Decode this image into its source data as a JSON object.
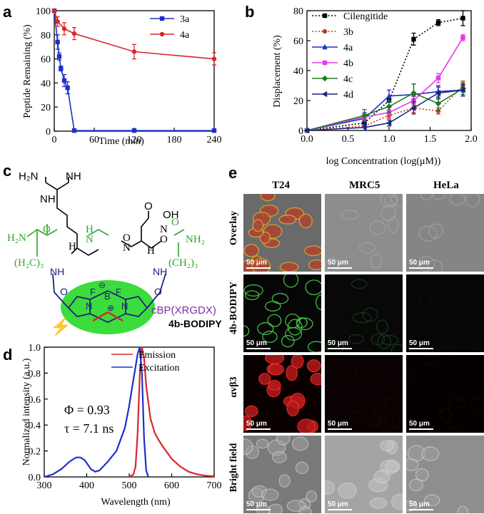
{
  "panels": {
    "a": "a",
    "b": "b",
    "c": "c",
    "d": "d",
    "e": "e"
  },
  "colors": {
    "blue": "#1f2fc8",
    "red": "#d8262a",
    "black": "#000000",
    "magenta": "#e838e8",
    "green": "#1e7d1e",
    "navy": "#1a237e",
    "darkred": "#c0392b",
    "chem_green": "#2ea52e",
    "purple": "#7b2fa8",
    "bodipy_fill": "#3cdc3c"
  },
  "chart_data": [
    {
      "id": "a",
      "type": "line",
      "xlabel": "Time (min)",
      "ylabel": "Peptide Remaining (%)",
      "xlim": [
        0,
        240
      ],
      "ylim": [
        0,
        100
      ],
      "xticks": [
        0,
        60,
        120,
        180,
        240
      ],
      "yticks": [
        0,
        20,
        40,
        60,
        80,
        100
      ],
      "legend_position": "top-right",
      "series": [
        {
          "name": "3a",
          "color": "#1f2fc8",
          "marker": "square",
          "x": [
            0,
            5,
            7.5,
            10,
            15,
            20,
            30,
            120,
            240
          ],
          "y": [
            100,
            74,
            62,
            52,
            42,
            36,
            0.5,
            0.5,
            0.5
          ],
          "err": [
            0,
            6,
            3,
            2,
            5,
            5,
            0,
            0,
            0
          ]
        },
        {
          "name": "4a",
          "color": "#d8262a",
          "marker": "circle",
          "x": [
            0,
            5,
            15,
            30,
            120,
            240
          ],
          "y": [
            100,
            91,
            85,
            81,
            66,
            60
          ],
          "err": [
            0,
            4,
            5,
            5,
            6,
            5
          ]
        }
      ]
    },
    {
      "id": "b",
      "type": "line",
      "xlabel": "log Concentration (log(μM))",
      "ylabel": "Displacement (%)",
      "xlim": [
        0,
        2
      ],
      "ylim": [
        0,
        80
      ],
      "xticks": [
        "0.0",
        "0.5",
        "1.0",
        "1.5",
        "2.0"
      ],
      "yticks": [
        0,
        20,
        40,
        60,
        80
      ],
      "legend_position": "top-left",
      "series": [
        {
          "name": "Cilengitide",
          "color": "#000000",
          "dash": "dot",
          "marker": "square",
          "x": [
            0,
            0.7,
            1.0,
            1.3,
            1.6,
            1.9
          ],
          "y": [
            0,
            5,
            20,
            61,
            72,
            75
          ],
          "err": [
            0,
            1,
            1,
            4,
            2,
            5
          ]
        },
        {
          "name": "3b",
          "color": "#c0392b",
          "dash": "dot",
          "marker": "circle",
          "x": [
            0,
            0.7,
            1.0,
            1.3,
            1.6,
            1.9
          ],
          "y": [
            0,
            3,
            10,
            15,
            13,
            30
          ],
          "err": [
            0,
            1,
            2,
            3,
            2,
            3
          ]
        },
        {
          "name": "4a",
          "color": "#1f2fc8",
          "dash": "solid",
          "marker": "triangle",
          "x": [
            0,
            0.7,
            1.0,
            1.3,
            1.6,
            1.9
          ],
          "y": [
            0,
            8,
            23,
            24,
            26,
            27
          ],
          "err": [
            0,
            4,
            4,
            7,
            4,
            4
          ]
        },
        {
          "name": "4b",
          "color": "#e838e8",
          "dash": "solid",
          "marker": "square",
          "x": [
            0,
            0.7,
            1.0,
            1.3,
            1.6,
            1.9
          ],
          "y": [
            0,
            9,
            12,
            20,
            35,
            62
          ],
          "err": [
            0,
            2,
            2,
            3,
            3,
            2
          ]
        },
        {
          "name": "4c",
          "color": "#1e7d1e",
          "dash": "solid",
          "marker": "diamond",
          "x": [
            0,
            0.7,
            1.0,
            1.3,
            1.6,
            1.9
          ],
          "y": [
            0,
            10,
            16,
            25,
            18,
            28
          ],
          "err": [
            0,
            4,
            4,
            6,
            5,
            4
          ]
        },
        {
          "name": "4d",
          "color": "#1a237e",
          "dash": "solid",
          "marker": "triangle-left",
          "x": [
            0,
            0.7,
            1.0,
            1.3,
            1.6,
            1.9
          ],
          "y": [
            0,
            2,
            5,
            15,
            25,
            27
          ],
          "err": [
            0,
            2,
            2,
            4,
            4,
            4
          ]
        }
      ]
    },
    {
      "id": "d",
      "type": "line",
      "xlabel": "Wavelength (nm)",
      "ylabel": "Normalized intensity (a.u.)",
      "xlim": [
        300,
        700
      ],
      "ylim": [
        0,
        1.0
      ],
      "xticks": [
        300,
        400,
        500,
        600,
        700
      ],
      "yticks": [
        "0.0",
        "0.2",
        "0.4",
        "0.6",
        "0.8",
        "1.0"
      ],
      "legend_position": "top-right",
      "annotations": [
        "Φ = 0.93",
        "τ = 7.1 ns"
      ],
      "series": [
        {
          "name": "Emission",
          "color": "#d8262a",
          "x": [
            500,
            510,
            515,
            520,
            525,
            530,
            535,
            540,
            550,
            560,
            570,
            580,
            600,
            620,
            640,
            660,
            680,
            700
          ],
          "y": [
            0.0,
            0.02,
            0.08,
            0.35,
            0.8,
            1.0,
            0.92,
            0.7,
            0.45,
            0.34,
            0.28,
            0.23,
            0.14,
            0.08,
            0.04,
            0.02,
            0.01,
            0.005
          ]
        },
        {
          "name": "Excitation",
          "color": "#1f2fc8",
          "x": [
            300,
            320,
            340,
            360,
            375,
            385,
            395,
            410,
            420,
            430,
            450,
            470,
            490,
            500,
            510,
            520,
            525,
            530,
            535,
            540,
            545
          ],
          "y": [
            0.0,
            0.02,
            0.06,
            0.12,
            0.15,
            0.15,
            0.13,
            0.06,
            0.04,
            0.05,
            0.12,
            0.2,
            0.38,
            0.55,
            0.75,
            0.95,
            1.0,
            0.8,
            0.3,
            0.05,
            0.0
          ]
        }
      ]
    }
  ],
  "chemistry": {
    "nh_labels": [
      "H₂N",
      "NH",
      "NH",
      "H",
      "O",
      "OH",
      "H₂N",
      "H",
      "N",
      "O",
      "H",
      "N",
      "O",
      "H",
      "N",
      "N",
      "NH₂",
      "O",
      "H",
      "N",
      "O",
      "(H₂C)₃",
      "(CH₂)₃",
      "NH",
      "NH",
      "O",
      "O"
    ],
    "bodipy_atoms": [
      "F",
      "F",
      "B",
      "N",
      "N"
    ],
    "minus": "⊖",
    "plus": "⊕",
    "label_a": "cBP(XRGDX)",
    "label_name": "4b-BODIPY",
    "bolt": "⚡"
  },
  "microscopy": {
    "columns": [
      "T24",
      "MRC5",
      "HeLa"
    ],
    "rows": [
      "Overlay",
      "4b-BODIPY",
      "αvβ3",
      "Bright field"
    ],
    "scalebar": "50 μm"
  }
}
